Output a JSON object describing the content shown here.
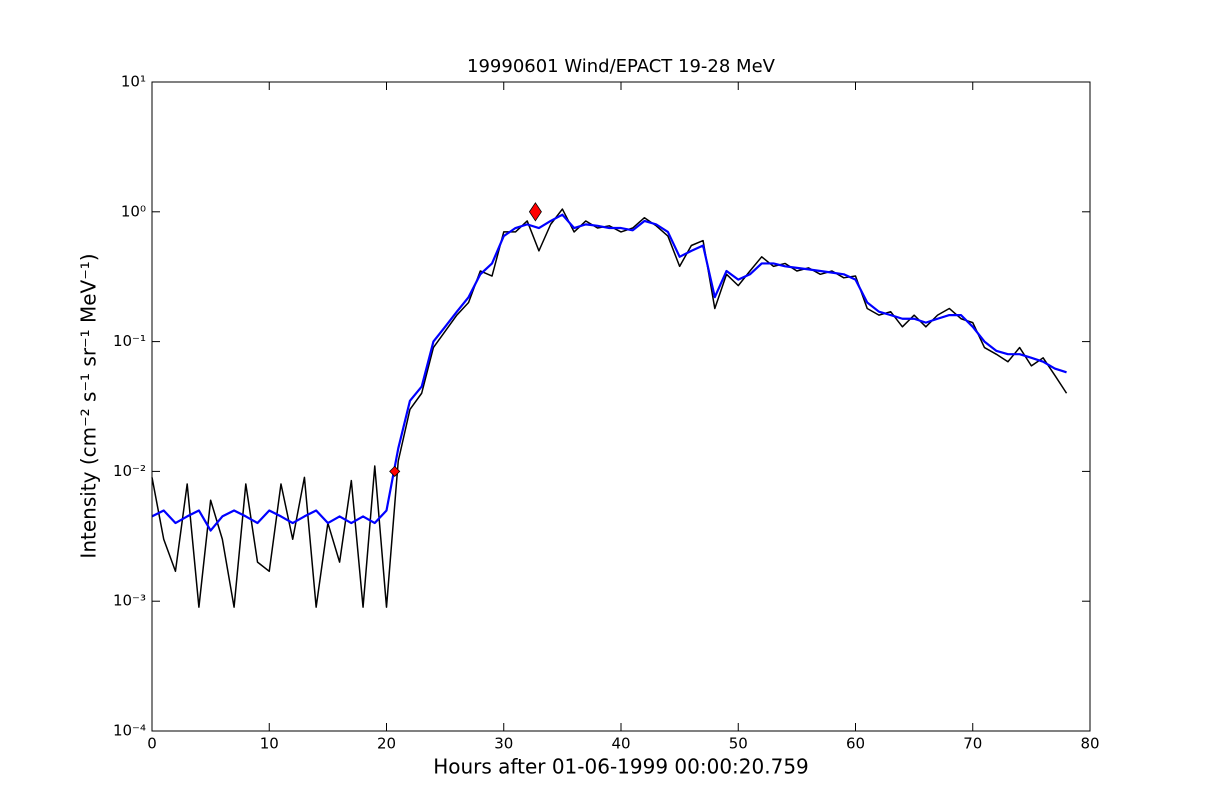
{
  "chart_data": {
    "type": "line",
    "title": "19990601 Wind/EPACT 19-28 MeV",
    "x_label": "Hours after 01-06-1999 00:00:20.759",
    "y_label": "Intensity (cm⁻² s⁻¹ sr⁻¹ MeV⁻¹)",
    "log_y": true,
    "xlim": [
      0,
      80
    ],
    "xticks": [
      0,
      10,
      20,
      30,
      40,
      50,
      60,
      70,
      80
    ],
    "ylim": [
      0.0001,
      10
    ],
    "yticks": [
      {
        "value": 0.0001,
        "label": "10⁻⁴"
      },
      {
        "value": 0.001,
        "label": "10⁻³"
      },
      {
        "value": 0.01,
        "label": "10⁻²"
      },
      {
        "value": 0.1,
        "label": "10⁻¹"
      },
      {
        "value": 1,
        "label": "10⁰"
      },
      {
        "value": 10,
        "label": "10¹"
      }
    ],
    "x": [
      0,
      1,
      2,
      3,
      4,
      5,
      6,
      7,
      8,
      9,
      10,
      11,
      12,
      13,
      14,
      15,
      16,
      17,
      18,
      19,
      20,
      21,
      22,
      23,
      24,
      25,
      26,
      27,
      28,
      29,
      30,
      31,
      32,
      33,
      34,
      35,
      36,
      37,
      38,
      39,
      40,
      41,
      42,
      43,
      44,
      45,
      46,
      47,
      48,
      49,
      50,
      51,
      52,
      53,
      54,
      55,
      56,
      57,
      58,
      59,
      60,
      61,
      62,
      63,
      64,
      65,
      66,
      67,
      68,
      69,
      70,
      71,
      72,
      73,
      74,
      75,
      76,
      77,
      78
    ],
    "series": [
      {
        "color": "#000000",
        "values": [
          0.009,
          0.003,
          0.0017,
          0.008,
          0.0009,
          0.006,
          0.003,
          0.0009,
          0.008,
          0.002,
          0.0017,
          0.008,
          0.003,
          0.009,
          0.0009,
          0.004,
          0.002,
          0.0085,
          0.0009,
          0.011,
          0.0009,
          0.012,
          0.03,
          0.04,
          0.09,
          0.12,
          0.16,
          0.2,
          0.35,
          0.32,
          0.7,
          0.7,
          0.85,
          0.5,
          0.8,
          1.05,
          0.7,
          0.85,
          0.75,
          0.78,
          0.7,
          0.75,
          0.9,
          0.78,
          0.65,
          0.38,
          0.55,
          0.6,
          0.18,
          0.33,
          0.27,
          0.35,
          0.45,
          0.38,
          0.4,
          0.35,
          0.37,
          0.33,
          0.35,
          0.31,
          0.32,
          0.18,
          0.16,
          0.17,
          0.13,
          0.16,
          0.13,
          0.16,
          0.18,
          0.15,
          0.14,
          0.09,
          0.08,
          0.07,
          0.09,
          0.065,
          0.075,
          0.055,
          0.04
        ]
      },
      {
        "color": "#0000ff",
        "values": [
          0.0045,
          0.005,
          0.004,
          0.0045,
          0.005,
          0.0035,
          0.0045,
          0.005,
          0.0045,
          0.004,
          0.005,
          0.0045,
          0.004,
          0.0045,
          0.005,
          0.004,
          0.0045,
          0.004,
          0.0045,
          0.004,
          0.005,
          0.015,
          0.035,
          0.045,
          0.1,
          0.13,
          0.17,
          0.22,
          0.33,
          0.4,
          0.65,
          0.75,
          0.8,
          0.75,
          0.85,
          0.95,
          0.75,
          0.8,
          0.78,
          0.75,
          0.75,
          0.72,
          0.85,
          0.8,
          0.7,
          0.45,
          0.5,
          0.55,
          0.22,
          0.35,
          0.3,
          0.33,
          0.4,
          0.4,
          0.38,
          0.37,
          0.36,
          0.35,
          0.34,
          0.33,
          0.3,
          0.2,
          0.17,
          0.16,
          0.15,
          0.15,
          0.14,
          0.15,
          0.16,
          0.16,
          0.13,
          0.1,
          0.085,
          0.08,
          0.08,
          0.075,
          0.07,
          0.062,
          0.058
        ]
      }
    ],
    "points": [
      {
        "x": 20.7,
        "y": 0.01
      },
      {
        "x": 32.7,
        "y": 1.0
      }
    ],
    "point_color": "#ff0000"
  }
}
